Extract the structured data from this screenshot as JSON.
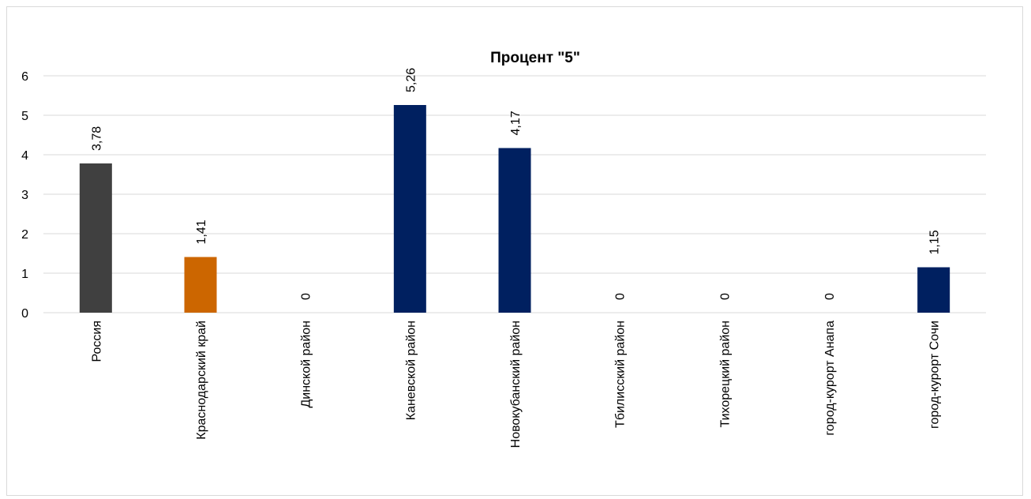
{
  "chart_data": {
    "type": "bar",
    "title": "Процент \"5\"",
    "categories": [
      "Россия",
      "Краснодарский край",
      "Динской район",
      "Каневской  район",
      "Новокубанский  район",
      "Тбилисский  район",
      "Тихорецкий район",
      "город-курорт Анапа",
      "город-курорт Сочи"
    ],
    "values": [
      3.78,
      1.41,
      0,
      5.26,
      4.17,
      0,
      0,
      0,
      1.15
    ],
    "data_labels": [
      "3,78",
      "1,41",
      "0",
      "5,26",
      "4,17",
      "0",
      "0",
      "0",
      "1,15"
    ],
    "bar_colors": [
      "#404040",
      "#cc6600",
      "#002060",
      "#002060",
      "#002060",
      "#002060",
      "#002060",
      "#002060",
      "#002060"
    ],
    "ylim": [
      0,
      6
    ],
    "yticks": [
      0,
      1,
      2,
      3,
      4,
      5,
      6
    ],
    "xlabel": "",
    "ylabel": "",
    "grid": true,
    "legend": "none"
  }
}
